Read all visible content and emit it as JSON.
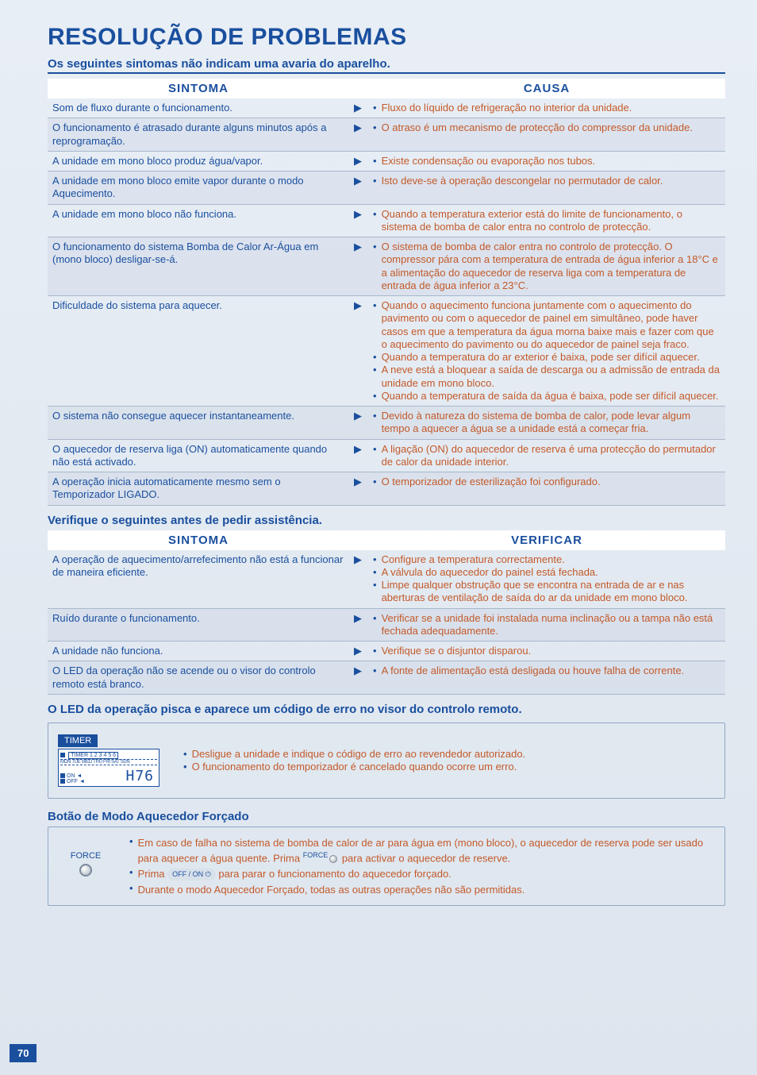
{
  "page": {
    "title": "RESOLUÇÃO DE PROBLEMAS",
    "subtitle": "Os seguintes sintomas não indicam uma avaria do aparelho.",
    "number": "70"
  },
  "table1": {
    "head_left": "SINTOMA",
    "head_right": "CAUSA",
    "rows": [
      {
        "sym": "Som de fluxo durante o funcionamento.",
        "causes": [
          "Fluxo do líquido de refrigeração no interior da unidade."
        ]
      },
      {
        "sym": "O funcionamento é atrasado durante alguns minutos após a reprogramação.",
        "causes": [
          "O atraso é um mecanismo de protecção do compressor da unidade."
        ]
      },
      {
        "sym": "A unidade em mono bloco produz água/vapor.",
        "causes": [
          "Existe condensação ou evaporação nos tubos."
        ]
      },
      {
        "sym": "A unidade em mono bloco emite vapor durante o modo Aquecimento.",
        "causes": [
          "Isto deve-se à operação descongelar no permutador de calor."
        ]
      },
      {
        "sym": "A unidade em mono bloco não funciona.",
        "causes": [
          "Quando a temperatura exterior está do limite de funcionamento, o sistema de bomba de calor entra no controlo de protecção."
        ]
      },
      {
        "sym": "O funcionamento do sistema Bomba de Calor Ar-Água em (mono bloco) desligar-se-á.",
        "causes": [
          "O sistema de bomba de calor entra no controlo de protecção. O compressor pára com a temperatura de entrada de água inferior a 18°C e a alimentação do aquecedor de reserva liga com a temperatura de entrada de água inferior a 23°C."
        ]
      },
      {
        "sym": "Dificuldade do sistema para aquecer.",
        "causes": [
          "Quando o aquecimento funciona juntamente com o aquecimento do pavimento ou com o aquecedor de painel em simultâneo, pode haver casos em que a temperatura da água morna baixe mais e fazer com que o aquecimento do pavimento ou do aquecedor de painel seja fraco.",
          "Quando a temperatura do ar exterior é baixa, pode ser difícil aquecer.",
          "A neve está a bloquear a saída de descarga ou a admissão de entrada da unidade em mono bloco.",
          "Quando a temperatura de saída da água é baixa, pode ser difícil aquecer."
        ]
      },
      {
        "sym": "O sistema não consegue aquecer instantaneamente.",
        "causes": [
          "Devido à natureza do sistema de bomba de calor, pode levar algum tempo a aquecer a água se a unidade está a começar fria."
        ]
      },
      {
        "sym": "O aquecedor de reserva liga (ON) automaticamente quando não está activado.",
        "causes": [
          "A ligação (ON) do aquecedor de reserva é uma protecção do permutador de calor da unidade interior."
        ]
      },
      {
        "sym": "A operação inicia automaticamente mesmo sem o Temporizador LIGADO.",
        "causes": [
          "O temporizador de esterilização foi configurado."
        ]
      }
    ]
  },
  "check_title": "Verifique o seguintes antes de pedir assistência.",
  "table2": {
    "head_left": "SINTOMA",
    "head_right": "VERIFICAR",
    "rows": [
      {
        "sym": "A operação de aquecimento/arrefecimento não está a funcionar de maneira eficiente.",
        "causes": [
          "Configure a temperatura correctamente.",
          "A válvula do aquecedor do painel está fechada.",
          "Limpe qualquer obstrução que se encontra na entrada de ar e nas aberturas de ventilação de saída do ar da unidade em mono bloco."
        ]
      },
      {
        "sym": "Ruído durante o funcionamento.",
        "causes": [
          "Verificar se a unidade foi instalada numa inclinação ou a tampa não está fechada adequadamente."
        ]
      },
      {
        "sym": "A unidade não funciona.",
        "causes": [
          "Verifique se o disjuntor disparou."
        ]
      },
      {
        "sym": "O LED da operação não se acende ou o visor do controlo remoto está branco.",
        "causes": [
          "A fonte de alimentação está desligada ou houve falha de corrente."
        ]
      }
    ]
  },
  "led_section": {
    "title": "O LED da operação pisca e aparece um código de erro no visor do controlo remoto.",
    "timer_label": "TIMER",
    "timer_inner": "TIMER",
    "timer_numbers": "1 2 3 4 5 6",
    "timer_days": "MON TUE WED THU FRI SAT SUN",
    "timer_on": "ON",
    "timer_off": "OFF",
    "timer_code": "H76",
    "bullets": [
      "Desligue a unidade e indique o código de erro ao revendedor autorizado.",
      "O funcionamento do temporizador é cancelado quando ocorre um erro."
    ]
  },
  "force_section": {
    "title": "Botão de Modo Aquecedor Forçado",
    "btn_label": "FORCE",
    "text1a": "Em caso de falha no sistema de bomba de calor de ar para água em (mono bloco), o aquecedor de reserva pode ser usado para aquecer a água quente. Prima ",
    "text1_force": "FORCE",
    "text1b": " para activar o aquecedor de reserve.",
    "text2a": "Prima ",
    "text2_offon": "OFF / ON",
    "text2b": " para parar o funcionamento do aquecedor forçado.",
    "text3": "Durante o modo Aquecedor Forçado, todas as outras operações não são permitidas."
  }
}
